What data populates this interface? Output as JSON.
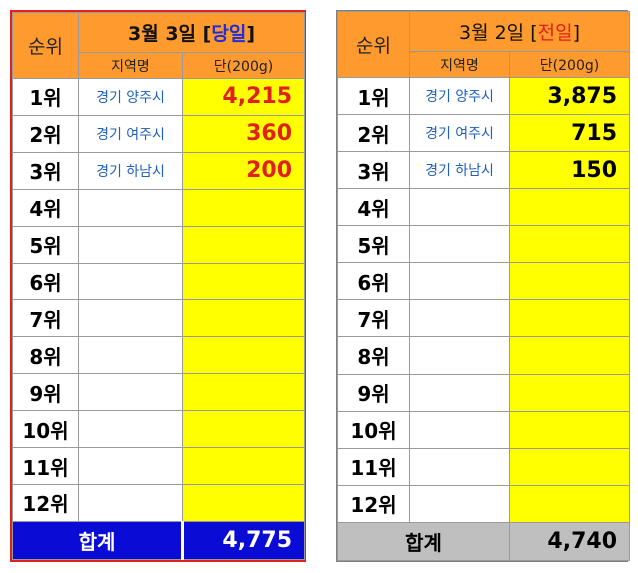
{
  "today": {
    "rank_header": "순위",
    "date_text": "3월 3일",
    "bracket_open": "[",
    "tag": "당일",
    "bracket_close": "]",
    "region_header": "지역명",
    "price_header": "단(200g)",
    "rows": [
      {
        "rank": "1위",
        "region": "경기 양주시",
        "price": "4,215"
      },
      {
        "rank": "2위",
        "region": "경기 여주시",
        "price": "360"
      },
      {
        "rank": "3위",
        "region": "경기 하남시",
        "price": "200"
      },
      {
        "rank": "4위",
        "region": "",
        "price": ""
      },
      {
        "rank": "5위",
        "region": "",
        "price": ""
      },
      {
        "rank": "6위",
        "region": "",
        "price": ""
      },
      {
        "rank": "7위",
        "region": "",
        "price": ""
      },
      {
        "rank": "8위",
        "region": "",
        "price": ""
      },
      {
        "rank": "9위",
        "region": "",
        "price": ""
      },
      {
        "rank": "10위",
        "region": "",
        "price": ""
      },
      {
        "rank": "11위",
        "region": "",
        "price": ""
      },
      {
        "rank": "12위",
        "region": "",
        "price": ""
      }
    ],
    "total_label": "합계",
    "total_value": "4,775"
  },
  "previous": {
    "rank_header": "순위",
    "date_text": "3월 2일",
    "bracket_open": "[",
    "tag": "전일",
    "bracket_close": "]",
    "region_header": "지역명",
    "price_header": "단(200g)",
    "rows": [
      {
        "rank": "1위",
        "region": "경기 양주시",
        "price": "3,875"
      },
      {
        "rank": "2위",
        "region": "경기 여주시",
        "price": "715"
      },
      {
        "rank": "3위",
        "region": "경기 하남시",
        "price": "150"
      },
      {
        "rank": "4위",
        "region": "",
        "price": ""
      },
      {
        "rank": "5위",
        "region": "",
        "price": ""
      },
      {
        "rank": "6위",
        "region": "",
        "price": ""
      },
      {
        "rank": "7위",
        "region": "",
        "price": ""
      },
      {
        "rank": "8위",
        "region": "",
        "price": ""
      },
      {
        "rank": "9위",
        "region": "",
        "price": ""
      },
      {
        "rank": "10위",
        "region": "",
        "price": ""
      },
      {
        "rank": "11위",
        "region": "",
        "price": ""
      },
      {
        "rank": "12위",
        "region": "",
        "price": ""
      }
    ],
    "total_label": "합계",
    "total_value": "4,740"
  },
  "colors": {
    "header_orange": "#fe9a2e",
    "price_yellow": "#ffff00",
    "today_border": "#e0201c",
    "today_total_bg": "#0b0bd6",
    "prev_total_bg": "#bfbfbf",
    "region_text": "#1f5fbf"
  }
}
